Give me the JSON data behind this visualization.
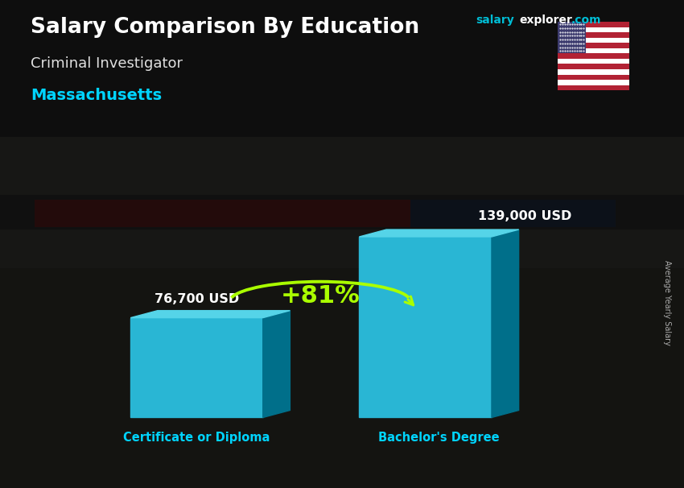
{
  "title_main": "Salary Comparison By Education",
  "title_sub": "Criminal Investigator",
  "location": "Massachusetts",
  "categories": [
    "Certificate or Diploma",
    "Bachelor's Degree"
  ],
  "values": [
    76700,
    139000
  ],
  "value_labels": [
    "76,700 USD",
    "139,000 USD"
  ],
  "pct_change": "+81%",
  "bar_face_color": "#29b6d4",
  "bar_side_color": "#006f8a",
  "bar_top_color": "#55d4e8",
  "side_label": "Average Yearly Salary",
  "website_salary": "salary",
  "website_explorer": "explorer",
  "website_com": ".com",
  "bg_dark": "#1c1c22",
  "bg_mid": "#3a3a40",
  "title_color": "#ffffff",
  "subtitle_color": "#e0e0e0",
  "location_color": "#00d4ff",
  "label_color": "#00d4ff",
  "value_color": "#ffffff",
  "pct_color": "#aaff00",
  "arrow_color": "#aaff00",
  "website_salary_color": "#00bcd4",
  "website_explorer_color": "#ffffff",
  "website_com_color": "#00bcd4"
}
